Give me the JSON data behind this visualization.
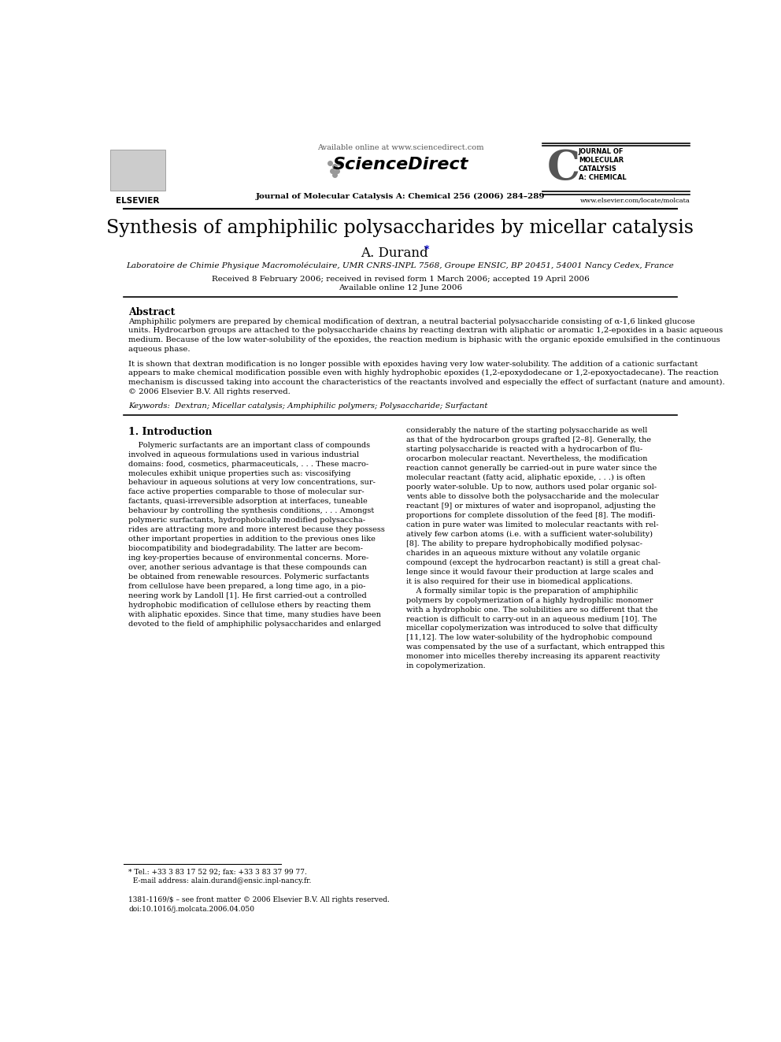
{
  "title": "Synthesis of amphiphilic polysaccharides by micellar catalysis",
  "author": "A. Durand",
  "affiliation": "Laboratoire de Chimie Physique Macromoléculaire, UMR CNRS-INPL 7568, Groupe ENSIC, BP 20451, 54001 Nancy Cedex, France",
  "received": "Received 8 February 2006; received in revised form 1 March 2006; accepted 19 April 2006",
  "available_online": "Available online 12 June 2006",
  "journal_line": "Journal of Molecular Catalysis A: Chemical 256 (2006) 284–289",
  "available_online_header": "Available online at www.sciencedirect.com",
  "elsevier_text": "ELSEVIER",
  "website": "www.elsevier.com/locate/molcata",
  "abstract_title": "Abstract",
  "abstract_p1": "Amphiphilic polymers are prepared by chemical modification of dextran, a neutral bacterial polysaccharide consisting of α-1,6 linked glucose\nunits. Hydrocarbon groups are attached to the polysaccharide chains by reacting dextran with aliphatic or aromatic 1,2-epoxides in a basic aqueous\nmedium. Because of the low water-solubility of the epoxides, the reaction medium is biphasic with the organic epoxide emulsified in the continuous\naqueous phase.",
  "abstract_p2": "It is shown that dextran modification is no longer possible with epoxides having very low water-solubility. The addition of a cationic surfactant\nappears to make chemical modification possible even with highly hydrophobic epoxides (1,2-epoxydodecane or 1,2-epoxyoctadecane). The reaction\nmechanism is discussed taking into account the characteristics of the reactants involved and especially the effect of surfactant (nature and amount).\n© 2006 Elsevier B.V. All rights reserved.",
  "keywords": "Keywords:  Dextran; Micellar catalysis; Amphiphilic polymers; Polysaccharide; Surfactant",
  "section1_title": "1. Introduction",
  "section1_col1": "    Polymeric surfactants are an important class of compounds\ninvolved in aqueous formulations used in various industrial\ndomains: food, cosmetics, pharmaceuticals, . . . These macro-\nmolecules exhibit unique properties such as: viscosifying\nbehaviour in aqueous solutions at very low concentrations, sur-\nface active properties comparable to those of molecular sur-\nfactants, quasi-irreversible adsorption at interfaces, tuneable\nbehaviour by controlling the synthesis conditions, . . . Amongst\npolymeric surfactants, hydrophobically modified polysaccha-\nrides are attracting more and more interest because they possess\nother important properties in addition to the previous ones like\nbiocompatibility and biodegradability. The latter are becom-\ning key-properties because of environmental concerns. More-\nover, another serious advantage is that these compounds can\nbe obtained from renewable resources. Polymeric surfactants\nfrom cellulose have been prepared, a long time ago, in a pio-\nneering work by Landoll [1]. He first carried-out a controlled\nhydrophobic modification of cellulose ethers by reacting them\nwith aliphatic epoxides. Since that time, many studies have been\ndevoted to the field of amphiphilic polysaccharides and enlarged",
  "section1_col2": "considerably the nature of the starting polysaccharide as well\nas that of the hydrocarbon groups grafted [2–8]. Generally, the\nstarting polysaccharide is reacted with a hydrocarbon of flu-\norocarbon molecular reactant. Nevertheless, the modification\nreaction cannot generally be carried-out in pure water since the\nmolecular reactant (fatty acid, aliphatic epoxide, . . .) is often\npoorly water-soluble. Up to now, authors used polar organic sol-\nvents able to dissolve both the polysaccharide and the molecular\nreactant [9] or mixtures of water and isopropanol, adjusting the\nproportions for complete dissolution of the feed [8]. The modifi-\ncation in pure water was limited to molecular reactants with rel-\natively few carbon atoms (i.e. with a sufficient water-solubility)\n[8]. The ability to prepare hydrophobically modified polysac-\ncharides in an aqueous mixture without any volatile organic\ncompound (except the hydrocarbon reactant) is still a great chal-\nlenge since it would favour their production at large scales and\nit is also required for their use in biomedical applications.\n    A formally similar topic is the preparation of amphiphilic\npolymers by copolymerization of a highly hydrophilic monomer\nwith a hydrophobic one. The solubilities are so different that the\nreaction is difficult to carry-out in an aqueous medium [10]. The\nmicellar copolymerization was introduced to solve that difficulty\n[11,12]. The low water-solubility of the hydrophobic compound\nwas compensated by the use of a surfactant, which entrapped this\nmonomer into micelles thereby increasing its apparent reactivity\nin copolymerization.",
  "footnote_line1": "* Tel.: +33 3 83 17 52 92; fax: +33 3 83 37 99 77.",
  "footnote_line2": "  E-mail address: alain.durand@ensic.inpl-nancy.fr.",
  "footer_line1": "1381-1169/$ – see front matter © 2006 Elsevier B.V. All rights reserved.",
  "footer_line2": "doi:10.1016/j.molcata.2006.04.050",
  "background_color": "#ffffff",
  "text_color": "#000000",
  "link_color": "#0000cc",
  "journal_logo_text": "JOURNAL OF\nMOLECULAR\nCATALYSIS\nA: CHEMICAL"
}
